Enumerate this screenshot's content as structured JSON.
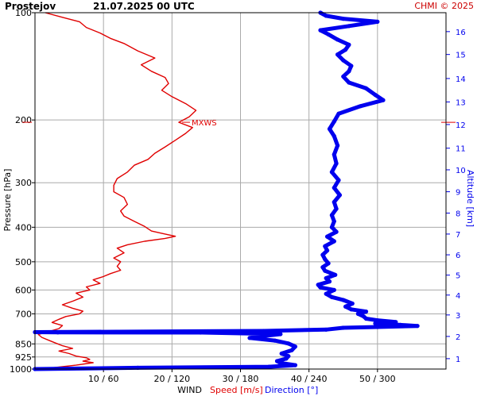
{
  "header": {
    "station": "Prostejov",
    "datetime": "21.07.2025 00 UTC",
    "credit": "CHMI © 2025"
  },
  "colors": {
    "speed": "#e00000",
    "direction": "#0000ee",
    "grid": "#aaaaaa",
    "axis_text": "#000000"
  },
  "chart_data": {
    "type": "line",
    "title": "Prostejov   21.07.2025 00 UTC",
    "ylabel_left": "Pressure [hPa]",
    "ylabel_right": "Altitude [km]",
    "xlabel": {
      "prefix": "WIND",
      "speed": "Speed [m/s]",
      "direction": "Direction [°]"
    },
    "y_scale": "log",
    "ylim": [
      1000,
      100
    ],
    "pressure_ticks": [
      100,
      200,
      300,
      400,
      500,
      600,
      700,
      850,
      925,
      1000
    ],
    "altitude_ticks_km": [
      {
        "km": 1,
        "p": 935
      },
      {
        "km": 2,
        "p": 810
      },
      {
        "km": 3,
        "p": 705
      },
      {
        "km": 4,
        "p": 620
      },
      {
        "km": 5,
        "p": 545
      },
      {
        "km": 6,
        "p": 478
      },
      {
        "km": 7,
        "p": 418
      },
      {
        "km": 8,
        "p": 365
      },
      {
        "km": 9,
        "p": 318
      },
      {
        "km": 10,
        "p": 276
      },
      {
        "km": 11,
        "p": 240
      },
      {
        "km": 12,
        "p": 206
      },
      {
        "km": 13,
        "p": 178
      },
      {
        "km": 14,
        "p": 153
      },
      {
        "km": 15,
        "p": 131
      },
      {
        "km": 16,
        "p": 113
      }
    ],
    "x_ticks": [
      {
        "speed": 10,
        "dir": 60,
        "label": "10 / 60"
      },
      {
        "speed": 20,
        "dir": 120,
        "label": "20 / 120"
      },
      {
        "speed": 30,
        "dir": 180,
        "label": "30 / 180"
      },
      {
        "speed": 40,
        "dir": 240,
        "label": "40 / 240"
      },
      {
        "speed": 50,
        "dir": 300,
        "label": "50 / 300"
      }
    ],
    "xlim_speed": [
      0,
      60
    ],
    "xlim_direction": [
      0,
      360
    ],
    "annotation": {
      "text": "MXWS",
      "p": 203,
      "speed": 21
    },
    "series": [
      {
        "name": "Speed [m/s]",
        "unit": "m/s",
        "points": [
          [
            1000,
            0.5
          ],
          [
            990,
            3
          ],
          [
            975,
            6
          ],
          [
            960,
            8.5
          ],
          [
            950,
            7
          ],
          [
            940,
            8
          ],
          [
            930,
            7.5
          ],
          [
            920,
            6
          ],
          [
            905,
            5
          ],
          [
            890,
            3.5
          ],
          [
            875,
            5.5
          ],
          [
            860,
            4
          ],
          [
            845,
            3
          ],
          [
            830,
            2
          ],
          [
            815,
            1
          ],
          [
            800,
            0.5
          ],
          [
            790,
            1.5
          ],
          [
            780,
            2.5
          ],
          [
            770,
            3.5
          ],
          [
            755,
            4
          ],
          [
            740,
            2.5
          ],
          [
            725,
            3.5
          ],
          [
            712,
            4.5
          ],
          [
            700,
            6.5
          ],
          [
            688,
            7
          ],
          [
            675,
            5.5
          ],
          [
            660,
            4
          ],
          [
            645,
            5.5
          ],
          [
            628,
            7
          ],
          [
            612,
            6
          ],
          [
            600,
            8
          ],
          [
            588,
            7.5
          ],
          [
            575,
            9.5
          ],
          [
            562,
            8.5
          ],
          [
            550,
            10
          ],
          [
            540,
            11
          ],
          [
            528,
            12.5
          ],
          [
            515,
            12
          ],
          [
            500,
            12.5
          ],
          [
            488,
            11.5
          ],
          [
            472,
            13
          ],
          [
            458,
            12
          ],
          [
            448,
            13.5
          ],
          [
            438,
            16
          ],
          [
            430,
            19
          ],
          [
            424,
            20.5
          ],
          [
            418,
            19
          ],
          [
            410,
            17
          ],
          [
            398,
            16
          ],
          [
            385,
            14.5
          ],
          [
            372,
            13
          ],
          [
            360,
            12.5
          ],
          [
            345,
            13.5
          ],
          [
            330,
            13
          ],
          [
            318,
            11.5
          ],
          [
            305,
            11.5
          ],
          [
            292,
            12
          ],
          [
            280,
            13.5
          ],
          [
            268,
            14.5
          ],
          [
            258,
            16.5
          ],
          [
            248,
            17.5
          ],
          [
            238,
            19
          ],
          [
            228,
            20.5
          ],
          [
            218,
            22
          ],
          [
            210,
            23
          ],
          [
            203,
            21
          ],
          [
            196,
            22.5
          ],
          [
            188,
            23.5
          ],
          [
            180,
            22
          ],
          [
            172,
            20
          ],
          [
            165,
            18.5
          ],
          [
            158,
            19.5
          ],
          [
            152,
            19
          ],
          [
            146,
            17
          ],
          [
            140,
            15.5
          ],
          [
            134,
            17.5
          ],
          [
            128,
            15
          ],
          [
            122,
            13
          ],
          [
            118,
            11
          ],
          [
            114,
            9.5
          ],
          [
            110,
            7.5
          ],
          [
            106,
            6.5
          ],
          [
            103,
            4
          ],
          [
            100,
            1.5
          ]
        ]
      },
      {
        "name": "Direction [°]",
        "unit": "deg",
        "points": [
          [
            1000,
            0
          ],
          [
            992,
            90
          ],
          [
            985,
            205
          ],
          [
            975,
            228
          ],
          [
            962,
            215
          ],
          [
            950,
            212
          ],
          [
            935,
            220
          ],
          [
            920,
            222
          ],
          [
            905,
            216
          ],
          [
            885,
            225
          ],
          [
            865,
            228
          ],
          [
            848,
            222
          ],
          [
            832,
            210
          ],
          [
            818,
            188
          ],
          [
            808,
            200
          ],
          [
            798,
            215
          ],
          [
            790,
            145
          ],
          [
            789,
            20
          ],
          [
            788,
            0
          ],
          [
            782,
            200
          ],
          [
            775,
            255
          ],
          [
            766,
            270
          ],
          [
            762,
            300
          ],
          [
            757,
            335
          ],
          [
            752,
            320
          ],
          [
            745,
            298
          ],
          [
            738,
            316
          ],
          [
            730,
            300
          ],
          [
            722,
            290
          ],
          [
            712,
            288
          ],
          [
            700,
            283
          ],
          [
            690,
            290
          ],
          [
            680,
            277
          ],
          [
            668,
            272
          ],
          [
            655,
            278
          ],
          [
            640,
            270
          ],
          [
            628,
            260
          ],
          [
            615,
            255
          ],
          [
            600,
            262
          ],
          [
            590,
            250
          ],
          [
            580,
            248
          ],
          [
            568,
            258
          ],
          [
            556,
            255
          ],
          [
            544,
            263
          ],
          [
            530,
            254
          ],
          [
            518,
            252
          ],
          [
            505,
            257
          ],
          [
            492,
            254
          ],
          [
            478,
            252
          ],
          [
            465,
            256
          ],
          [
            452,
            254
          ],
          [
            438,
            262
          ],
          [
            425,
            256
          ],
          [
            412,
            264
          ],
          [
            400,
            260
          ],
          [
            385,
            262
          ],
          [
            370,
            260
          ],
          [
            355,
            264
          ],
          [
            340,
            262
          ],
          [
            325,
            267
          ],
          [
            310,
            262
          ],
          [
            295,
            266
          ],
          [
            280,
            260
          ],
          [
            265,
            264
          ],
          [
            250,
            262
          ],
          [
            236,
            265
          ],
          [
            222,
            262
          ],
          [
            212,
            258
          ],
          [
            202,
            262
          ],
          [
            192,
            266
          ],
          [
            183,
            285
          ],
          [
            176,
            305
          ],
          [
            170,
            298
          ],
          [
            163,
            290
          ],
          [
            157,
            275
          ],
          [
            151,
            270
          ],
          [
            146,
            275
          ],
          [
            141,
            277
          ],
          [
            136,
            270
          ],
          [
            131,
            265
          ],
          [
            127,
            272
          ],
          [
            123,
            275
          ],
          [
            119,
            265
          ],
          [
            115,
            257
          ],
          [
            112,
            250
          ],
          [
            109,
            275
          ],
          [
            106,
            300
          ],
          [
            104,
            270
          ],
          [
            102,
            255
          ],
          [
            100,
            250
          ]
        ]
      }
    ]
  }
}
